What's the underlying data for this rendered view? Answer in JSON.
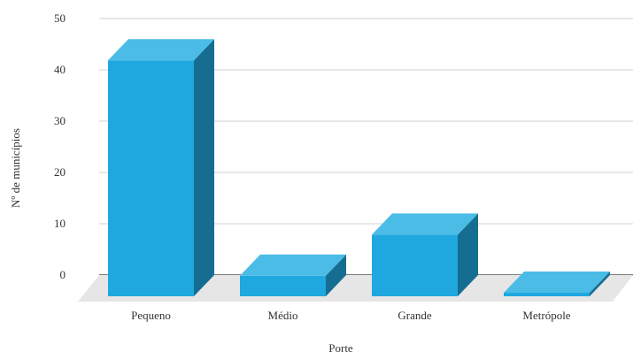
{
  "chart_data": {
    "type": "bar",
    "title": "",
    "xlabel": "Porte",
    "ylabel": "Nº de municípios",
    "categories": [
      "Pequeno",
      "Médio",
      "Grande",
      "Metrópole"
    ],
    "values": [
      46,
      4,
      12,
      0
    ],
    "ylim": [
      0,
      50
    ],
    "yticks": [
      0,
      10,
      20,
      30,
      40,
      50
    ],
    "grid": true,
    "three_d": true,
    "colors": {
      "bar_front": "#1fa8e0",
      "bar_top": "#4bbce6",
      "bar_side": "#156e91",
      "floor": "#e6e6e6",
      "grid": "#d0d0d0",
      "axis": "#333333"
    }
  }
}
